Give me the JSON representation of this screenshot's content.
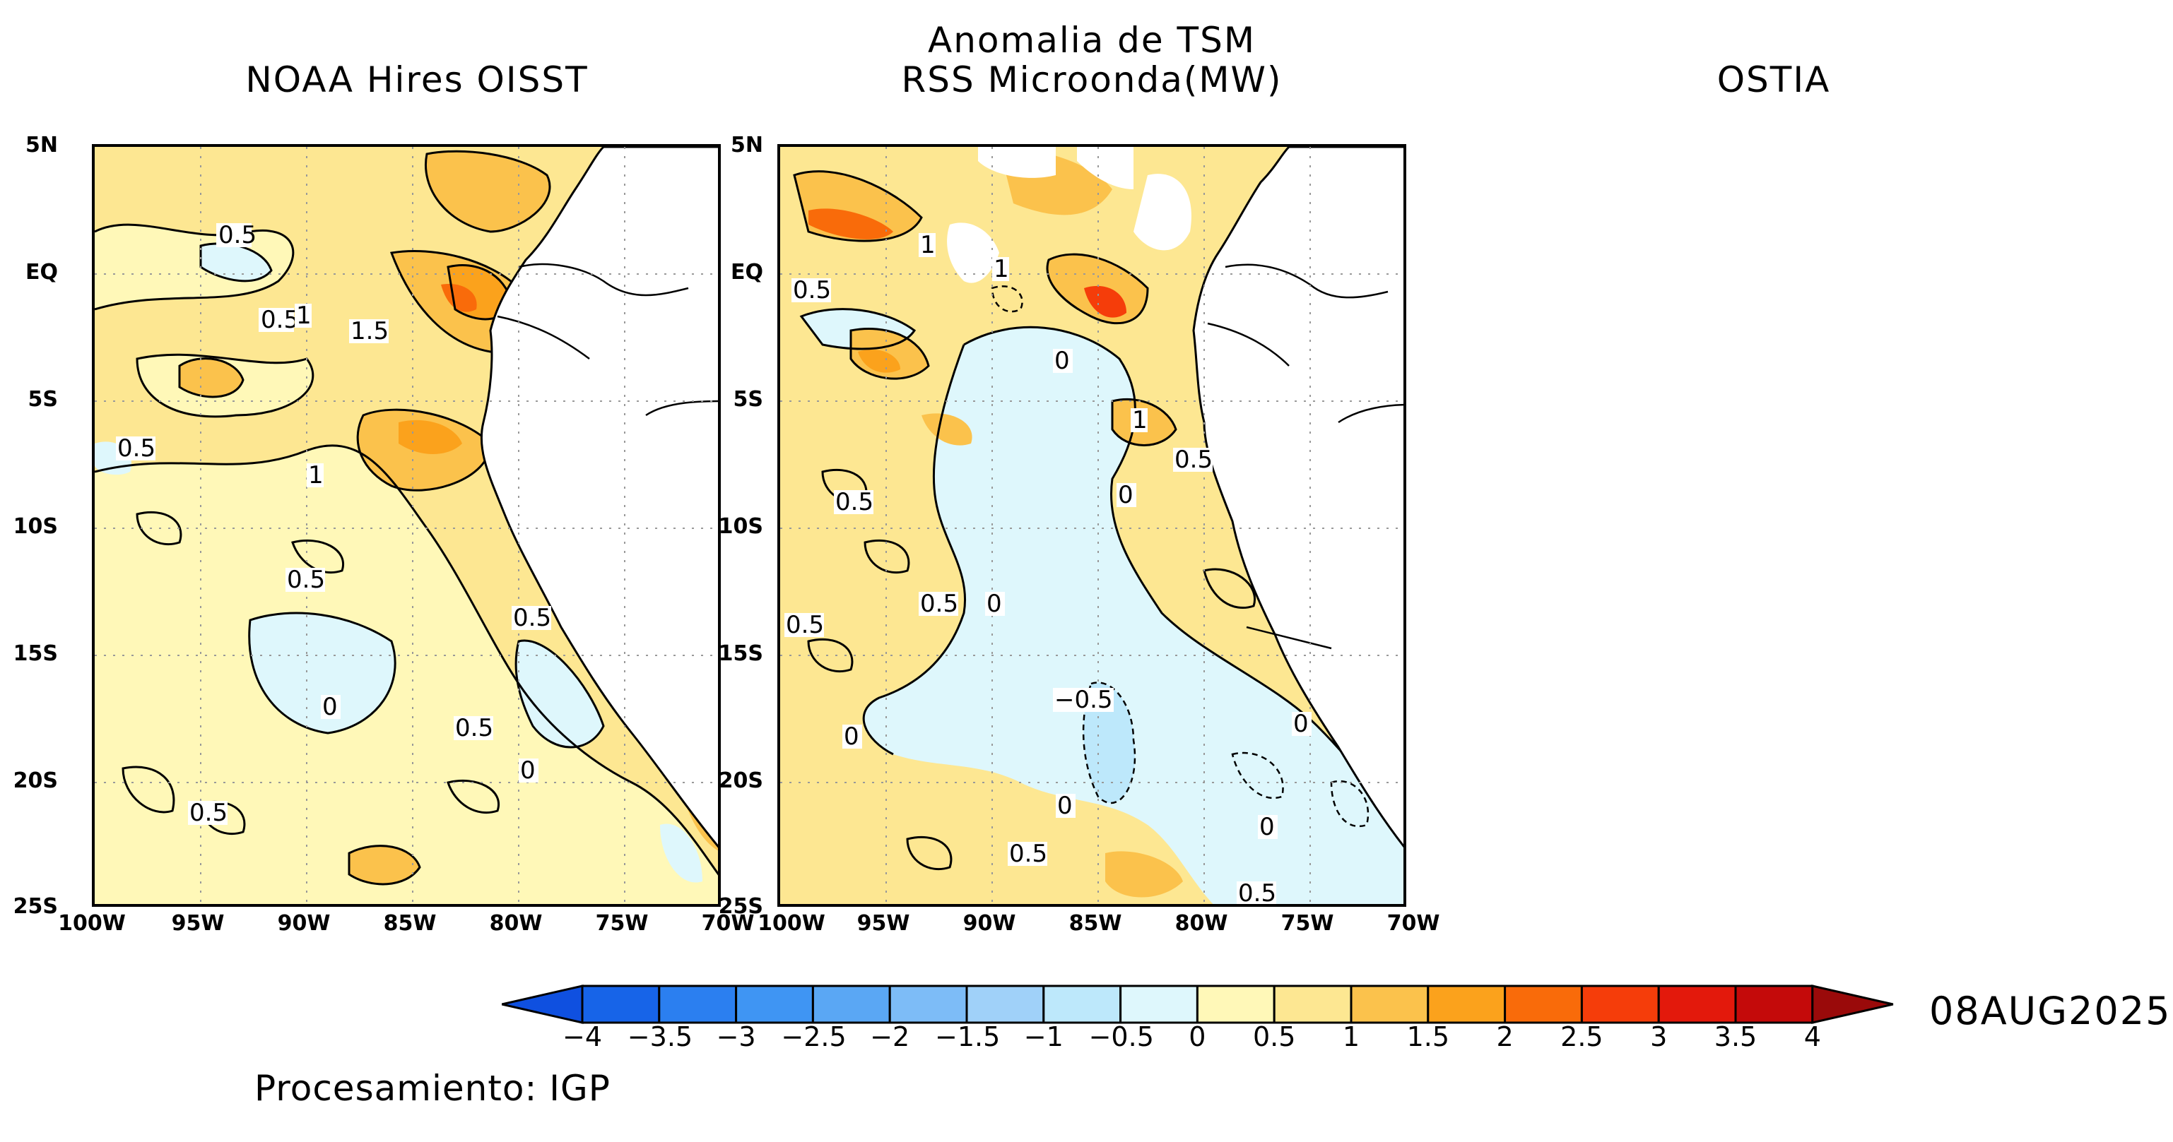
{
  "titles": {
    "left": "NOAA Hires OISST",
    "center_line1": "Anomalia de TSM",
    "center_line2": "RSS Microonda(MW)",
    "right": "OSTIA"
  },
  "lat_ticks": [
    "5N",
    "EQ",
    "5S",
    "10S",
    "15S",
    "20S",
    "25S"
  ],
  "lon_ticks_left": [
    "100W",
    "95W",
    "90W",
    "85W",
    "80W",
    "75W",
    "70W"
  ],
  "lon_ticks_right": [
    "100W",
    "95W",
    "90W",
    "85W",
    "80W",
    "75W",
    "70W"
  ],
  "panel_left_labels": [
    "0.5",
    "0.5",
    "1",
    "1.5",
    "0.5",
    "1",
    "0.5",
    "0.5",
    "0",
    "0.5",
    "0",
    "0.5"
  ],
  "panel_right_labels": [
    "1",
    "0.5",
    "1",
    "0",
    "1",
    "0.5",
    "0",
    "0.5",
    "0.5",
    "0",
    "0.5",
    "−0.5",
    "0",
    "0",
    "0",
    "0",
    "0.5",
    "0.5"
  ],
  "colorbar": {
    "ticks": [
      "−4",
      "−3.5",
      "−3",
      "−2.5",
      "−2",
      "−1.5",
      "−1",
      "−0.5",
      "0",
      "0.5",
      "1",
      "1.5",
      "2",
      "2.5",
      "3",
      "3.5",
      "4"
    ],
    "colors": [
      "#1764e8",
      "#2b7ff0",
      "#3f95f3",
      "#5aa7f4",
      "#7dbcf7",
      "#a0d1f9",
      "#bde8fb",
      "#def7fc",
      "#fff8b8",
      "#fde792",
      "#fbc24c",
      "#fba21c",
      "#f96b0a",
      "#f53d0a",
      "#e3190c",
      "#c40a0a"
    ],
    "low_color": "#0f50e0",
    "high_color": "#9a0a0a"
  },
  "date": "08AUG2025",
  "credit": "Procesamiento: IGP"
}
